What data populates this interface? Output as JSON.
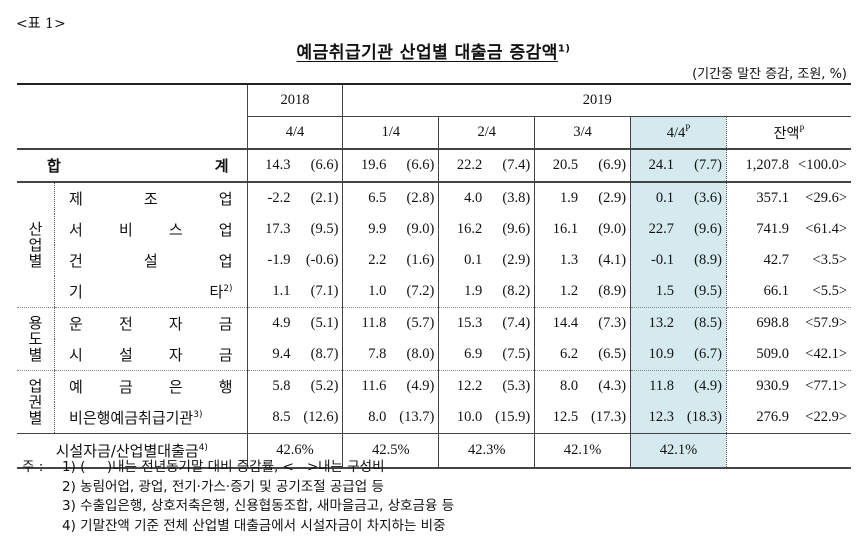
{
  "table_label": "<표 1>",
  "title": "예금취급기관 산업별 대출금 증감액",
  "title_note": "1)",
  "unit": "(기간중 말잔 증감, 조원, %)",
  "highlight_color": "#d4eaee",
  "header": {
    "years": [
      "2018",
      "2019"
    ],
    "quarters": [
      "4/4",
      "1/4",
      "2/4",
      "3/4",
      "4/4",
      "잔액"
    ],
    "prelim_mark": "P"
  },
  "total": {
    "label_left": "합",
    "label_right": "계",
    "values": [
      [
        "14.3",
        "(6.6)"
      ],
      [
        "19.6",
        "(6.6)"
      ],
      [
        "22.2",
        "(7.4)"
      ],
      [
        "20.5",
        "(6.9)"
      ],
      [
        "24.1",
        "(7.7)"
      ]
    ],
    "balance": [
      "1,207.8",
      "<100.0>"
    ]
  },
  "groups": [
    {
      "name": "산업별",
      "chars": [
        "산",
        "업",
        "별"
      ],
      "rows": [
        {
          "label_chars": [
            "제",
            "조",
            "업"
          ],
          "note": "",
          "values": [
            [
              "-2.2",
              "(2.1)"
            ],
            [
              "6.5",
              "(2.8)"
            ],
            [
              "4.0",
              "(3.8)"
            ],
            [
              "1.9",
              "(2.9)"
            ],
            [
              "0.1",
              "(3.6)"
            ]
          ],
          "balance": [
            "357.1",
            "<29.6>"
          ]
        },
        {
          "label_chars": [
            "서",
            "비",
            "스",
            "업"
          ],
          "note": "",
          "values": [
            [
              "17.3",
              "(9.5)"
            ],
            [
              "9.9",
              "(9.0)"
            ],
            [
              "16.2",
              "(9.6)"
            ],
            [
              "16.1",
              "(9.0)"
            ],
            [
              "22.7",
              "(9.6)"
            ]
          ],
          "balance": [
            "741.9",
            "<61.4>"
          ]
        },
        {
          "label_chars": [
            "건",
            "설",
            "업"
          ],
          "note": "",
          "values": [
            [
              "-1.9",
              "(-0.6)"
            ],
            [
              "2.2",
              "(1.6)"
            ],
            [
              "0.1",
              "(2.9)"
            ],
            [
              "1.3",
              "(4.1)"
            ],
            [
              "-0.1",
              "(8.9)"
            ]
          ],
          "balance": [
            "42.7",
            "<3.5>"
          ]
        },
        {
          "label_chars": [
            "기",
            "타"
          ],
          "note": "2)",
          "values": [
            [
              "1.1",
              "(7.1)"
            ],
            [
              "1.0",
              "(7.2)"
            ],
            [
              "1.9",
              "(8.2)"
            ],
            [
              "1.2",
              "(8.9)"
            ],
            [
              "1.5",
              "(9.5)"
            ]
          ],
          "balance": [
            "66.1",
            "<5.5>"
          ]
        }
      ]
    },
    {
      "name": "용도별",
      "chars": [
        "용",
        "도",
        "별"
      ],
      "rows": [
        {
          "label_chars": [
            "운",
            "전",
            "자",
            "금"
          ],
          "note": "",
          "values": [
            [
              "4.9",
              "(5.1)"
            ],
            [
              "11.8",
              "(5.7)"
            ],
            [
              "15.3",
              "(7.4)"
            ],
            [
              "14.4",
              "(7.3)"
            ],
            [
              "13.2",
              "(8.5)"
            ]
          ],
          "balance": [
            "698.8",
            "<57.9>"
          ]
        },
        {
          "label_chars": [
            "시",
            "설",
            "자",
            "금"
          ],
          "note": "",
          "values": [
            [
              "9.4",
              "(8.7)"
            ],
            [
              "7.8",
              "(8.0)"
            ],
            [
              "6.9",
              "(7.5)"
            ],
            [
              "6.2",
              "(6.5)"
            ],
            [
              "10.9",
              "(6.7)"
            ]
          ],
          "balance": [
            "509.0",
            "<42.1>"
          ]
        }
      ]
    },
    {
      "name": "업권별",
      "chars": [
        "업",
        "권",
        "별"
      ],
      "rows": [
        {
          "label_chars": [
            "예",
            "금",
            "은",
            "행"
          ],
          "note": "",
          "values": [
            [
              "5.8",
              "(5.2)"
            ],
            [
              "11.6",
              "(4.9)"
            ],
            [
              "12.2",
              "(5.3)"
            ],
            [
              "8.0",
              "(4.3)"
            ],
            [
              "11.8",
              "(4.9)"
            ]
          ],
          "balance": [
            "930.9",
            "<77.1>"
          ]
        },
        {
          "label_chars": [
            "비은행예금취급기관"
          ],
          "note": "3)",
          "values": [
            [
              "8.5",
              "(12.6)"
            ],
            [
              "8.0",
              "(13.7)"
            ],
            [
              "10.0",
              "(15.9)"
            ],
            [
              "12.5",
              "(17.3)"
            ],
            [
              "12.3",
              "(18.3)"
            ]
          ],
          "balance": [
            "276.9",
            "<22.9>"
          ]
        }
      ]
    }
  ],
  "ratio": {
    "label": "시설자금/산업별대출금",
    "note": "4)",
    "values": [
      "42.6%",
      "42.5%",
      "42.3%",
      "42.1%",
      "42.1%"
    ]
  },
  "notes": {
    "prefix": "주 :",
    "items": [
      "1) (     )내는 전년동기말 대비 증감률, <   >내는 구성비",
      "2) 농림어업, 광업, 전기·가스·증기 및 공기조절 공급업 등",
      "3) 수출입은행, 상호저축은행, 신용협동조합, 새마을금고, 상호금융 등",
      "4) 기말잔액 기준 전체 산업별 대출금에서 시설자금이 차지하는 비중"
    ]
  }
}
